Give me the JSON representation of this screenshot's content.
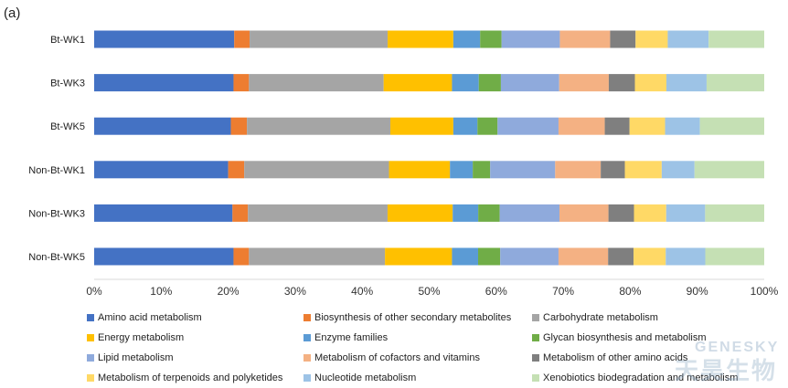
{
  "panel_label": "(a)",
  "watermark": {
    "brand_en": "GENESKY",
    "brand_cn": "天昊生物"
  },
  "chart_data": {
    "type": "bar",
    "orientation": "horizontal",
    "stacking": "percent",
    "categories": [
      "Bt-WK1",
      "Bt-WK3",
      "Bt-WK5",
      "Non-Bt-WK1",
      "Non-Bt-WK3",
      "Non-Bt-WK5"
    ],
    "xlim": [
      0,
      100
    ],
    "x_ticks": [
      "0%",
      "10%",
      "20%",
      "30%",
      "40%",
      "50%",
      "60%",
      "70%",
      "80%",
      "90%",
      "100%"
    ],
    "grid": false,
    "legend_position": "bottom",
    "series": [
      {
        "name": "Amino acid metabolism",
        "color": "#4472C4",
        "values": [
          20.9,
          20.8,
          20.4,
          20.0,
          20.6,
          20.8
        ]
      },
      {
        "name": "Biosynthesis of other secondary metabolites",
        "color": "#ED7D31",
        "values": [
          2.3,
          2.3,
          2.4,
          2.4,
          2.3,
          2.3
        ]
      },
      {
        "name": "Carbohydrate metabolism",
        "color": "#A5A5A5",
        "values": [
          20.6,
          20.1,
          21.4,
          21.6,
          20.8,
          20.3
        ]
      },
      {
        "name": "Energy metabolism",
        "color": "#FFC000",
        "values": [
          9.8,
          10.2,
          9.4,
          9.1,
          9.7,
          10.0
        ]
      },
      {
        "name": "Enzyme families",
        "color": "#5B9BD5",
        "values": [
          4.0,
          4.0,
          3.6,
          3.4,
          3.8,
          3.9
        ]
      },
      {
        "name": "Glycan biosynthesis and metabolism",
        "color": "#70AD47",
        "values": [
          3.2,
          3.3,
          3.0,
          2.6,
          3.2,
          3.3
        ]
      },
      {
        "name": "Lipid metabolism",
        "color": "#8FAADC",
        "values": [
          8.7,
          8.7,
          9.1,
          9.7,
          8.9,
          8.7
        ]
      },
      {
        "name": "Metabolism of cofactors and vitamins",
        "color": "#F4B183",
        "values": [
          7.5,
          7.4,
          6.9,
          6.8,
          7.3,
          7.4
        ]
      },
      {
        "name": "Metabolism of other amino acids",
        "color": "#7F7F7F",
        "values": [
          3.8,
          3.9,
          3.7,
          3.6,
          3.8,
          3.8
        ]
      },
      {
        "name": "Metabolism of terpenoids and polyketides",
        "color": "#FFD966",
        "values": [
          4.8,
          4.7,
          5.3,
          5.5,
          4.8,
          4.8
        ]
      },
      {
        "name": "Nucleotide metabolism",
        "color": "#9DC3E6",
        "values": [
          6.1,
          6.0,
          5.2,
          4.9,
          5.8,
          5.9
        ]
      },
      {
        "name": "Xenobiotics biodegradation and metabolism",
        "color": "#C5E0B4",
        "values": [
          8.3,
          8.6,
          9.6,
          10.4,
          8.8,
          8.8
        ]
      }
    ]
  }
}
